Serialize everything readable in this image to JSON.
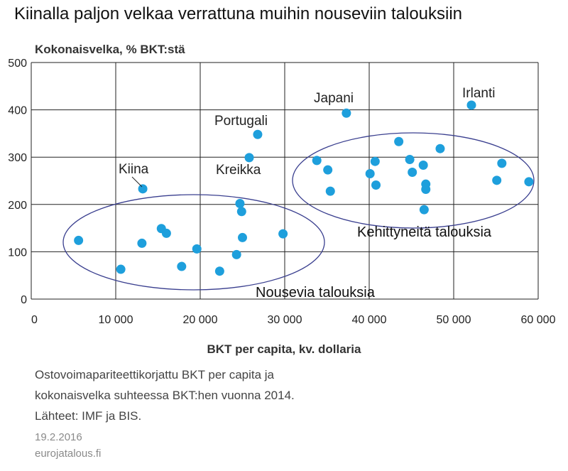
{
  "chart_data": {
    "type": "scatter",
    "title": "Kiinalla paljon velkaa verrattuna muihin nouseviin talouksiin",
    "ylabel": "Kokonaisvelka, % BKT:stä",
    "xlabel": "BKT per capita, kv. dollaria",
    "xlim": [
      0,
      60000
    ],
    "ylim": [
      0,
      500
    ],
    "x_ticks": [
      0,
      10000,
      20000,
      30000,
      40000,
      50000,
      60000
    ],
    "x_tick_labels": [
      "0",
      "10 000",
      "20 000",
      "30 000",
      "40 000",
      "50 000",
      "60 000"
    ],
    "y_ticks": [
      0,
      100,
      200,
      300,
      400,
      500
    ],
    "y_tick_labels": [
      "0",
      "100",
      "200",
      "300",
      "400",
      "500"
    ],
    "grid": true,
    "point_color": "#1e9fdc",
    "ellipse_color": "#3a3f8f",
    "series": [
      {
        "points": [
          {
            "x": 5600,
            "y": 124
          },
          {
            "x": 10600,
            "y": 63
          },
          {
            "x": 13100,
            "y": 118
          },
          {
            "x": 13200,
            "y": 233
          },
          {
            "x": 15400,
            "y": 149
          },
          {
            "x": 16000,
            "y": 139
          },
          {
            "x": 17800,
            "y": 69
          },
          {
            "x": 19600,
            "y": 106
          },
          {
            "x": 22300,
            "y": 59
          },
          {
            "x": 24300,
            "y": 94
          },
          {
            "x": 24700,
            "y": 202
          },
          {
            "x": 24900,
            "y": 185
          },
          {
            "x": 25000,
            "y": 130
          },
          {
            "x": 25800,
            "y": 299
          },
          {
            "x": 26800,
            "y": 348
          },
          {
            "x": 29800,
            "y": 138
          },
          {
            "x": 33800,
            "y": 293
          },
          {
            "x": 35100,
            "y": 273
          },
          {
            "x": 35400,
            "y": 228
          },
          {
            "x": 37300,
            "y": 393
          },
          {
            "x": 40100,
            "y": 265
          },
          {
            "x": 40700,
            "y": 291
          },
          {
            "x": 40800,
            "y": 241
          },
          {
            "x": 43500,
            "y": 333
          },
          {
            "x": 44800,
            "y": 295
          },
          {
            "x": 45100,
            "y": 268
          },
          {
            "x": 46400,
            "y": 283
          },
          {
            "x": 46500,
            "y": 189
          },
          {
            "x": 46700,
            "y": 243
          },
          {
            "x": 46700,
            "y": 232
          },
          {
            "x": 48400,
            "y": 318
          },
          {
            "x": 52100,
            "y": 410
          },
          {
            "x": 55100,
            "y": 251
          },
          {
            "x": 55700,
            "y": 287
          },
          {
            "x": 58900,
            "y": 248
          }
        ]
      }
    ],
    "annotations": [
      {
        "text": "Irlanti"
      },
      {
        "text": "Japani"
      },
      {
        "text": "Portugali"
      },
      {
        "text": "Kreikka"
      },
      {
        "text": "Kiina"
      }
    ],
    "groups": [
      {
        "label": "Nousevia talouksia"
      },
      {
        "label": "Kehittyneitä talouksia"
      }
    ]
  },
  "footer": {
    "line1": "Ostovoimapariteettikorjattu BKT per capita ja",
    "line2": "kokonaisvelka suhteessa BKT:hen vuonna 2014.",
    "line3": "Lähteet: IMF ja BIS.",
    "date": "19.2.2016",
    "source": "eurojatalous.fi"
  }
}
